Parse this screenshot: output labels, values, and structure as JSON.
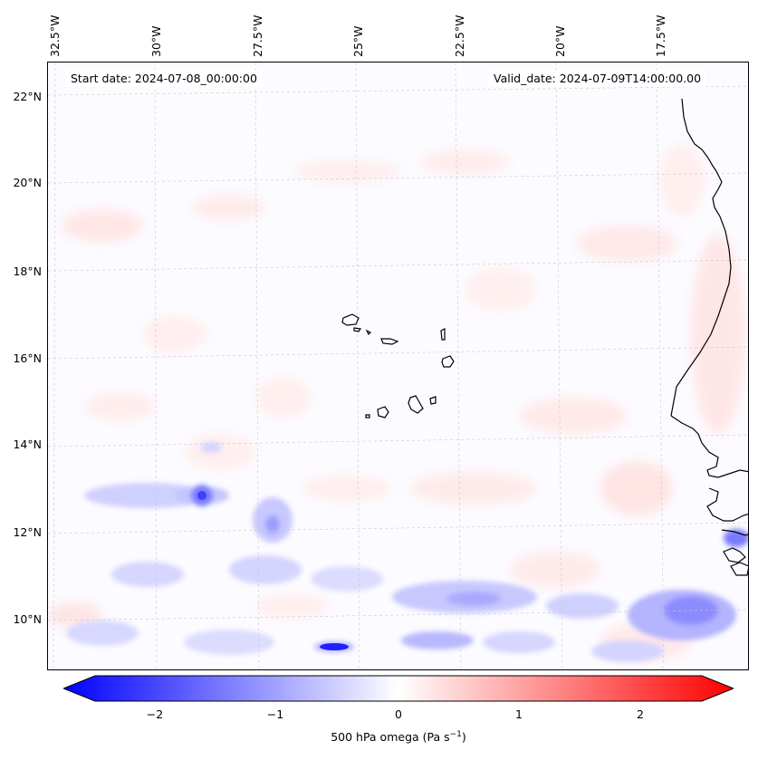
{
  "map": {
    "start_date": "Start date: 2024-07-08_00:00:00",
    "valid_date": "Valid_date: 2024-07-09T14:00:00.00",
    "lon_labels": [
      "32.5°W",
      "30°W",
      "27.5°W",
      "25°W",
      "22.5°W",
      "20°W",
      "17.5°W"
    ],
    "lat_labels": [
      "22°N",
      "20°N",
      "18°N",
      "16°N",
      "14°N",
      "12°N",
      "10°N"
    ],
    "region": "Cabo Verde and West African coast",
    "colormap": "bwr"
  },
  "colorbar": {
    "ticks": [
      "−2",
      "−1",
      "0",
      "1",
      "2"
    ],
    "label": "500 hPa omega (Pa s",
    "label_sup": "−1",
    "label_end": ")",
    "min_color": "#0000ff",
    "mid_color": "#ffffff",
    "max_color": "#ff0000"
  }
}
